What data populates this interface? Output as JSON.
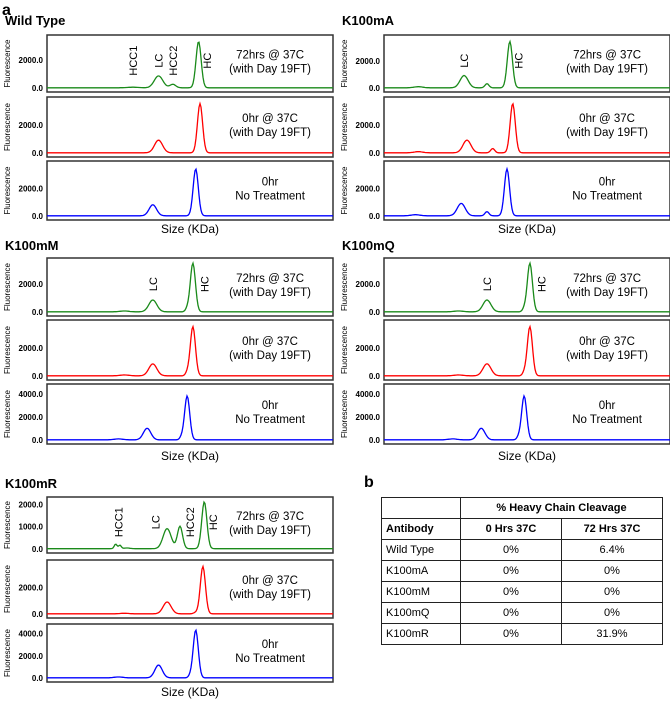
{
  "panel_labels": {
    "a": "a",
    "b": "b"
  },
  "chart_data": {
    "type": "line",
    "xlabel": "Size (KDa)",
    "ylabel": "Fluorescence",
    "colors": {
      "72hrs": "#1a8a1a",
      "0hr37": "#ff0000",
      "0hr": "#0000ff"
    },
    "groups": [
      {
        "title": "Wild Type",
        "traces": [
          {
            "color": "72hrs",
            "condition": [
              "72hrs @ 37C",
              "(with Day 19FT)"
            ],
            "ymax": 3500,
            "ticks": [
              0,
              2000
            ],
            "peaks": [
              [
                30,
                40,
                2
              ],
              [
                39,
                850,
                1.5
              ],
              [
                44,
                250,
                1
              ],
              [
                53,
                3300,
                0.9
              ]
            ],
            "annotations": [
              {
                "text": "HCC1",
                "at": 30
              },
              {
                "text": "LC",
                "at": 39
              },
              {
                "text": "HCC2",
                "at": 44
              },
              {
                "text": "HC",
                "at": 56
              }
            ]
          },
          {
            "color": "0hr37",
            "condition": [
              "0hr @ 37C",
              "(with Day 19FT)"
            ],
            "ymax": 3700,
            "ticks": [
              0,
              2000
            ],
            "peaks": [
              [
                39,
                900,
                1.4
              ],
              [
                53.5,
                3500,
                0.9
              ]
            ]
          },
          {
            "color": "0hr",
            "condition": [
              "0hr",
              "No Treatment"
            ],
            "ymax": 3700,
            "ticks": [
              0,
              2000
            ],
            "peaks": [
              [
                37,
                800,
                1.3
              ],
              [
                52,
                3400,
                0.9
              ]
            ]
          }
        ]
      },
      {
        "title": "K100mA",
        "traces": [
          {
            "color": "72hrs",
            "condition": [
              "72hrs @ 37C",
              "(with Day 19FT)"
            ],
            "ymax": 3600,
            "ticks": [
              0,
              2000
            ],
            "peaks": [
              [
                12,
                80,
                1.5
              ],
              [
                28,
                900,
                1.4
              ],
              [
                36,
                300,
                0.7
              ],
              [
                44,
                3400,
                0.9
              ]
            ],
            "annotations": [
              {
                "text": "LC",
                "at": 28
              },
              {
                "text": "HC",
                "at": 47
              }
            ]
          },
          {
            "color": "0hr37",
            "condition": [
              "0hr @ 37C",
              "(with Day 19FT)"
            ],
            "ymax": 3700,
            "ticks": [
              0,
              2000
            ],
            "peaks": [
              [
                12,
                80,
                1.5
              ],
              [
                29,
                900,
                1.4
              ],
              [
                38,
                300,
                0.7
              ],
              [
                45,
                3500,
                0.9
              ]
            ]
          },
          {
            "color": "0hr",
            "condition": [
              "0hr",
              "No Treatment"
            ],
            "ymax": 3700,
            "ticks": [
              0,
              2000
            ],
            "peaks": [
              [
                11,
                80,
                1.5
              ],
              [
                27,
                900,
                1.4
              ],
              [
                36,
                300,
                0.7
              ],
              [
                43,
                3400,
                0.9
              ]
            ]
          }
        ]
      },
      {
        "title": "K100mM",
        "traces": [
          {
            "color": "72hrs",
            "condition": [
              "72hrs @ 37C",
              "(with Day 19FT)"
            ],
            "ymax": 3600,
            "ticks": [
              0,
              2000
            ],
            "peaks": [
              [
                27,
                60,
                1.5
              ],
              [
                37,
                850,
                1.4
              ],
              [
                49,
                200,
                0.6
              ],
              [
                51,
                3500,
                0.9
              ]
            ],
            "annotations": [
              {
                "text": "LC",
                "at": 37
              },
              {
                "text": "HC",
                "at": 55
              }
            ]
          },
          {
            "color": "0hr37",
            "condition": [
              "0hr @ 37C",
              "(with Day 19FT)"
            ],
            "ymax": 3700,
            "ticks": [
              0,
              2000
            ],
            "peaks": [
              [
                27,
                60,
                1.5
              ],
              [
                37,
                850,
                1.4
              ],
              [
                49,
                200,
                0.6
              ],
              [
                51,
                3500,
                0.9
              ]
            ]
          },
          {
            "color": "0hr",
            "condition": [
              "0hr",
              "No Treatment"
            ],
            "ymax": 4500,
            "ticks": [
              0,
              2000,
              4000
            ],
            "peaks": [
              [
                25,
                80,
                1.5
              ],
              [
                35,
                1000,
                1.3
              ],
              [
                47,
                200,
                0.6
              ],
              [
                49,
                3800,
                0.9
              ]
            ]
          }
        ]
      },
      {
        "title": "K100mQ",
        "traces": [
          {
            "color": "72hrs",
            "condition": [
              "72hrs @ 37C",
              "(with Day 19FT)"
            ],
            "ymax": 3600,
            "ticks": [
              0,
              2000
            ],
            "peaks": [
              [
                26,
                60,
                1.5
              ],
              [
                36,
                850,
                1.4
              ],
              [
                49,
                200,
                0.6
              ],
              [
                51,
                3500,
                0.9
              ]
            ],
            "annotations": [
              {
                "text": "LC",
                "at": 36
              },
              {
                "text": "HC",
                "at": 55
              }
            ]
          },
          {
            "color": "0hr37",
            "condition": [
              "0hr @ 37C",
              "(with Day 19FT)"
            ],
            "ymax": 3700,
            "ticks": [
              0,
              2000
            ],
            "peaks": [
              [
                26,
                60,
                1.5
              ],
              [
                36,
                850,
                1.4
              ],
              [
                49,
                200,
                0.6
              ],
              [
                51,
                3500,
                0.9
              ]
            ]
          },
          {
            "color": "0hr",
            "condition": [
              "0hr",
              "No Treatment"
            ],
            "ymax": 4500,
            "ticks": [
              0,
              2000,
              4000
            ],
            "peaks": [
              [
                24,
                80,
                1.5
              ],
              [
                34,
                1000,
                1.3
              ],
              [
                47,
                200,
                0.6
              ],
              [
                49,
                3800,
                0.9
              ]
            ]
          }
        ]
      },
      {
        "title": "K100mR",
        "traces": [
          {
            "color": "72hrs",
            "condition": [
              "72hrs @ 37C",
              "(with Day 19FT)"
            ],
            "ymax": 2150,
            "ticks": [
              0,
              1000,
              2000
            ],
            "peaks": [
              [
                24,
                200,
                0.5
              ],
              [
                25.5,
                150,
                0.5
              ],
              [
                28,
                30,
                1
              ],
              [
                42,
                900,
                1.4
              ],
              [
                46.5,
                1000,
                0.9
              ],
              [
                55,
                2100,
                0.9
              ]
            ],
            "annotations": [
              {
                "text": "HCC1",
                "at": 25
              },
              {
                "text": "LC",
                "at": 38
              },
              {
                "text": "HCC2",
                "at": 50
              },
              {
                "text": "HC",
                "at": 58
              }
            ]
          },
          {
            "color": "0hr37",
            "condition": [
              "0hr @ 37C",
              "(with Day 19FT)"
            ],
            "ymax": 3800,
            "ticks": [
              0,
              2000
            ],
            "peaks": [
              [
                27,
                40,
                1.5
              ],
              [
                42,
                900,
                1.4
              ],
              [
                52,
                100,
                0.7
              ],
              [
                54.5,
                3600,
                0.9
              ]
            ]
          },
          {
            "color": "0hr",
            "condition": [
              "0hr",
              "No Treatment"
            ],
            "ymax": 4500,
            "ticks": [
              0,
              2000,
              4000
            ],
            "peaks": [
              [
                25,
                80,
                1.5
              ],
              [
                39,
                1150,
                1.3
              ],
              [
                50,
                150,
                0.6
              ],
              [
                52,
                4300,
                0.9
              ]
            ]
          }
        ]
      }
    ]
  },
  "table": {
    "super_header": "% Heavy Chain Cleavage",
    "headers": [
      "Antibody",
      "0 Hrs 37C",
      "72 Hrs 37C"
    ],
    "rows": [
      [
        "Wild Type",
        "0%",
        "6.4%"
      ],
      [
        "K100mA",
        "0%",
        "0%"
      ],
      [
        "K100mM",
        "0%",
        "0%"
      ],
      [
        "K100mQ",
        "0%",
        "0%"
      ],
      [
        "K100mR",
        "0%",
        "31.9%"
      ]
    ]
  }
}
